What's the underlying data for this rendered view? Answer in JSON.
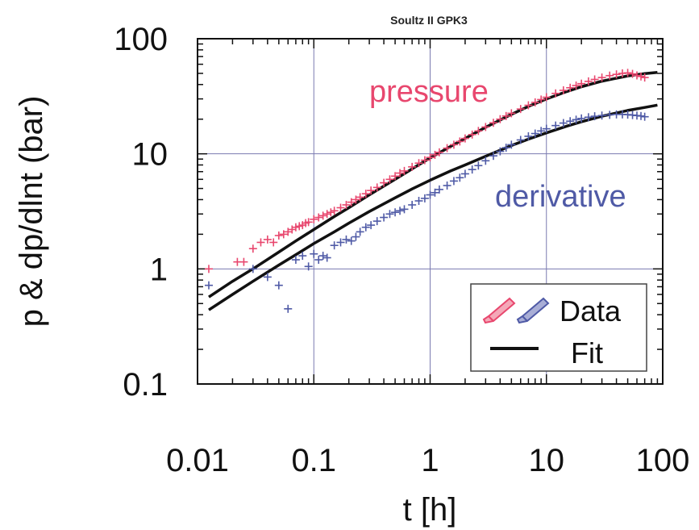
{
  "chart_data": {
    "type": "scatter",
    "title": "Soultz II GPK3",
    "xlabel": "t [h]",
    "ylabel": "p & dp/dlnt (bar)",
    "xscale": "log",
    "yscale": "log",
    "xlim": [
      0.01,
      100
    ],
    "ylim": [
      0.1,
      100
    ],
    "xticks": [
      {
        "value": 0.01,
        "label": "0.01"
      },
      {
        "value": 0.1,
        "label": "0.1"
      },
      {
        "value": 1,
        "label": "1"
      },
      {
        "value": 10,
        "label": "10"
      },
      {
        "value": 100,
        "label": "100"
      }
    ],
    "yticks": [
      {
        "value": 0.1,
        "label": "0.1"
      },
      {
        "value": 1,
        "label": "1"
      },
      {
        "value": 10,
        "label": "10"
      },
      {
        "value": 100,
        "label": "100"
      }
    ],
    "grid": true,
    "legend": {
      "position": "bottom-right",
      "entries": [
        {
          "label": "Data",
          "icon": "pencil-icon"
        },
        {
          "label": "Fit",
          "icon": "line"
        }
      ]
    },
    "annotations": {
      "pressure": "pressure",
      "derivative": "derivative"
    },
    "colors": {
      "pressure": "#e8476e",
      "derivative": "#4f5aa6",
      "fit": "#111111",
      "grid": "#7a7ab0"
    },
    "series": [
      {
        "name": "pressure",
        "kind": "data",
        "x": [
          0.0125,
          0.022,
          0.025,
          0.03,
          0.035,
          0.04,
          0.045,
          0.05,
          0.055,
          0.06,
          0.065,
          0.07,
          0.075,
          0.08,
          0.085,
          0.09,
          0.1,
          0.11,
          0.12,
          0.13,
          0.14,
          0.15,
          0.17,
          0.19,
          0.21,
          0.23,
          0.25,
          0.28,
          0.31,
          0.35,
          0.4,
          0.45,
          0.5,
          0.55,
          0.6,
          0.7,
          0.8,
          0.9,
          1.0,
          1.1,
          1.2,
          1.4,
          1.6,
          1.8,
          2.0,
          2.3,
          2.6,
          3.0,
          3.5,
          4.0,
          4.5,
          5.0,
          6.0,
          7.0,
          8.0,
          9.0,
          10,
          12,
          14,
          16,
          18,
          20,
          23,
          26,
          30,
          35,
          40,
          45,
          50,
          55,
          60,
          65,
          70
        ],
        "y": [
          1.0,
          1.15,
          1.15,
          1.5,
          1.7,
          1.8,
          1.7,
          1.95,
          2.0,
          2.1,
          2.2,
          2.3,
          2.35,
          2.4,
          2.5,
          2.55,
          2.7,
          2.8,
          2.9,
          3.0,
          3.1,
          3.2,
          3.4,
          3.6,
          3.8,
          4.0,
          4.2,
          4.5,
          4.8,
          5.1,
          5.6,
          6.0,
          6.4,
          6.8,
          7.1,
          7.7,
          8.3,
          8.8,
          9.3,
          9.8,
          10.3,
          11.2,
          12.0,
          12.8,
          13.6,
          14.7,
          15.8,
          17.1,
          18.6,
          20.0,
          21.3,
          22.5,
          24.5,
          26.4,
          28.0,
          29.6,
          31.0,
          33.5,
          35.6,
          37.5,
          39.2,
          40.7,
          42.6,
          44.3,
          46.0,
          47.8,
          49.0,
          50.0,
          50.5,
          49.5,
          48.0,
          47.0,
          46.0
        ]
      },
      {
        "name": "derivative",
        "kind": "data",
        "x": [
          0.0125,
          0.03,
          0.04,
          0.05,
          0.06,
          0.07,
          0.08,
          0.09,
          0.1,
          0.11,
          0.12,
          0.13,
          0.15,
          0.17,
          0.19,
          0.21,
          0.23,
          0.25,
          0.28,
          0.31,
          0.35,
          0.4,
          0.45,
          0.5,
          0.55,
          0.6,
          0.7,
          0.8,
          0.9,
          1.0,
          1.1,
          1.2,
          1.4,
          1.6,
          1.8,
          2.0,
          2.3,
          2.6,
          3.0,
          3.5,
          4.0,
          4.5,
          5.0,
          6.0,
          7.0,
          8.0,
          9.0,
          10,
          12,
          14,
          16,
          18,
          20,
          23,
          26,
          30,
          35,
          40,
          45,
          50,
          55,
          60,
          65,
          70
        ],
        "y": [
          0.72,
          1.0,
          0.85,
          0.72,
          0.45,
          1.2,
          1.3,
          1.05,
          1.35,
          1.2,
          1.3,
          1.25,
          1.6,
          1.7,
          1.8,
          1.75,
          1.9,
          2.1,
          2.3,
          2.4,
          2.6,
          2.8,
          3.0,
          3.1,
          3.2,
          3.3,
          3.6,
          3.9,
          4.1,
          4.4,
          4.6,
          4.9,
          5.3,
          5.8,
          6.2,
          6.7,
          7.3,
          7.9,
          8.7,
          9.6,
          10.5,
          11.3,
          12.0,
          13.2,
          14.2,
          15.0,
          15.8,
          16.5,
          17.6,
          18.5,
          19.2,
          19.8,
          20.3,
          20.8,
          21.2,
          21.5,
          21.8,
          22.0,
          22.0,
          21.9,
          21.7,
          21.5,
          21.3,
          21.0
        ]
      },
      {
        "name": "pressure-fit",
        "kind": "fit",
        "x": [
          0.0125,
          0.02,
          0.03,
          0.05,
          0.07,
          0.1,
          0.15,
          0.2,
          0.3,
          0.5,
          0.7,
          1.0,
          1.5,
          2.0,
          3.0,
          5.0,
          7.0,
          10,
          15,
          20,
          30,
          50,
          70,
          90
        ],
        "y": [
          0.57,
          0.78,
          1.0,
          1.4,
          1.75,
          2.2,
          2.85,
          3.4,
          4.4,
          6.0,
          7.4,
          9.2,
          11.6,
          13.6,
          17.0,
          22.0,
          25.8,
          30.0,
          34.8,
          38.3,
          42.8,
          47.5,
          49.8,
          51.0
        ]
      },
      {
        "name": "derivative-fit",
        "kind": "fit",
        "x": [
          0.0125,
          0.02,
          0.03,
          0.05,
          0.07,
          0.1,
          0.15,
          0.2,
          0.3,
          0.5,
          0.7,
          1.0,
          1.5,
          2.0,
          3.0,
          5.0,
          7.0,
          10,
          15,
          20,
          30,
          50,
          70,
          90
        ],
        "y": [
          0.44,
          0.6,
          0.78,
          1.08,
          1.33,
          1.66,
          2.1,
          2.5,
          3.15,
          4.15,
          4.95,
          5.9,
          7.1,
          8.0,
          9.5,
          11.8,
          13.4,
          15.2,
          17.4,
          19.0,
          21.2,
          23.8,
          25.3,
          26.5
        ]
      }
    ]
  }
}
